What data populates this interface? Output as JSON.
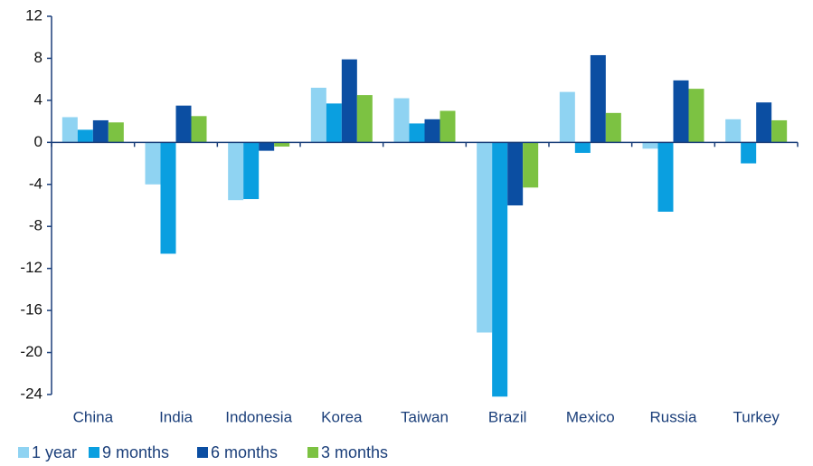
{
  "chart_data": {
    "type": "bar",
    "categories": [
      "China",
      "India",
      "Indonesia",
      "Korea",
      "Taiwan",
      "Brazil",
      "Mexico",
      "Russia",
      "Turkey"
    ],
    "series": [
      {
        "name": "1 year",
        "color": "#8fd3f2",
        "values": [
          2.4,
          -4.0,
          -5.5,
          5.2,
          4.2,
          -18.1,
          4.8,
          -0.6,
          2.2
        ]
      },
      {
        "name": "9 months",
        "color": "#0a9fe0",
        "values": [
          1.2,
          -10.6,
          -5.4,
          3.7,
          1.8,
          -24.2,
          -1.0,
          -6.6,
          -2.0
        ]
      },
      {
        "name": "6 months",
        "color": "#0b4ea2",
        "values": [
          2.1,
          3.5,
          -0.8,
          7.9,
          2.2,
          -6.0,
          8.3,
          5.9,
          3.8
        ]
      },
      {
        "name": "3 months",
        "color": "#7cc242",
        "values": [
          1.9,
          2.5,
          -0.4,
          4.5,
          3.0,
          -4.3,
          2.8,
          5.1,
          2.1
        ]
      }
    ],
    "ylim": [
      -24,
      12
    ],
    "yticks": [
      -24,
      -20,
      -16,
      -12,
      -8,
      -4,
      0,
      4,
      8,
      12
    ]
  }
}
